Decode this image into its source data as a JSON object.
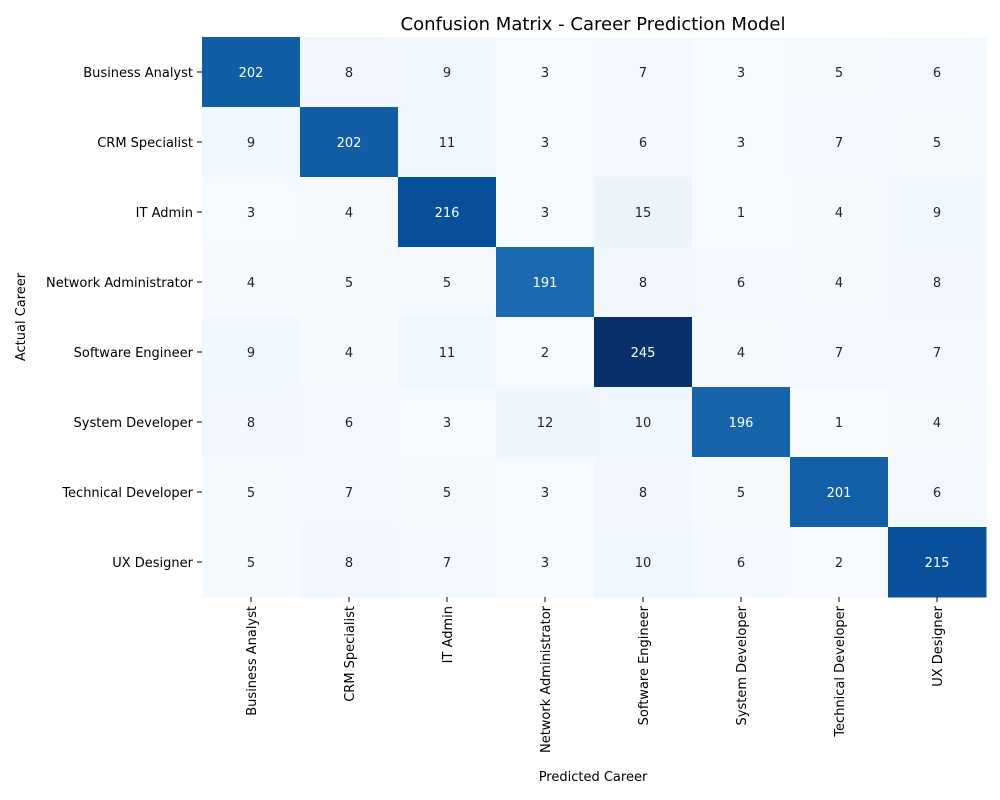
{
  "chart_data": {
    "type": "heatmap",
    "title": "Confusion Matrix - Career Prediction Model",
    "xlabel": "Predicted Career",
    "ylabel": "Actual Career",
    "x_categories": [
      "Business Analyst",
      "CRM Specialist",
      "IT Admin",
      "Network Administrator",
      "Software Engineer",
      "System Developer",
      "Technical Developer",
      "UX Designer"
    ],
    "y_categories": [
      "Business Analyst",
      "CRM Specialist",
      "IT Admin",
      "Network Administrator",
      "Software Engineer",
      "System Developer",
      "Technical Developer",
      "UX Designer"
    ],
    "values": [
      [
        202,
        8,
        9,
        3,
        7,
        3,
        5,
        6
      ],
      [
        9,
        202,
        11,
        3,
        6,
        3,
        7,
        5
      ],
      [
        3,
        4,
        216,
        3,
        15,
        1,
        4,
        9
      ],
      [
        4,
        5,
        5,
        191,
        8,
        6,
        4,
        8
      ],
      [
        9,
        4,
        11,
        2,
        245,
        4,
        7,
        7
      ],
      [
        8,
        6,
        3,
        12,
        10,
        196,
        1,
        4
      ],
      [
        5,
        7,
        5,
        3,
        8,
        5,
        201,
        6
      ],
      [
        5,
        8,
        7,
        3,
        10,
        6,
        2,
        215
      ]
    ],
    "colormap": "Blues",
    "color_low": "#f7fbff",
    "color_high": "#08306b",
    "colorbar": false,
    "grid": false
  }
}
